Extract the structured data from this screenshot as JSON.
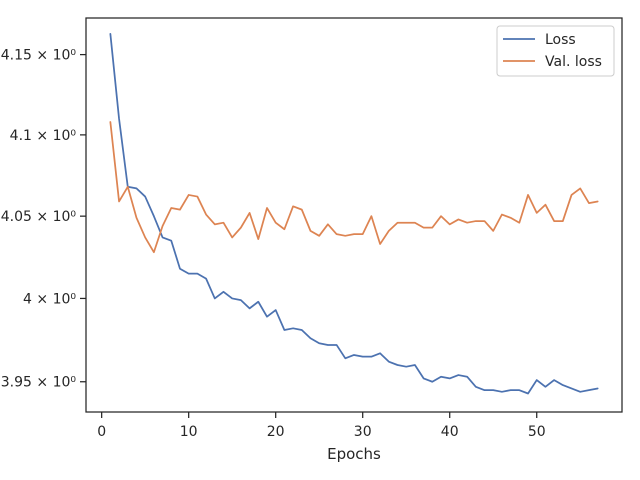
{
  "colors": {
    "loss": "#4c72b0",
    "val_loss": "#dd8452",
    "axes": "#262626",
    "background": "#ffffff"
  },
  "chart_data": {
    "type": "line",
    "title": "",
    "xlabel": "Epochs",
    "ylabel": "",
    "yscale": "log",
    "xlim": [
      -1.8,
      59.8
    ],
    "ylim": [
      3.932,
      4.173
    ],
    "xticks": [
      0,
      10,
      20,
      30,
      40,
      50
    ],
    "xtick_labels": [
      "0",
      "10",
      "20",
      "30",
      "40",
      "50"
    ],
    "yticks": [
      3.95,
      4.0,
      4.05,
      4.1,
      4.15
    ],
    "ytick_labels": [
      "3.95 × 10⁰",
      "4 × 10⁰",
      "4.05 × 10⁰",
      "4.1 × 10⁰",
      "4.15 × 10⁰"
    ],
    "grid": false,
    "legend_position": "top-right",
    "x": [
      1,
      2,
      3,
      4,
      5,
      6,
      7,
      8,
      9,
      10,
      11,
      12,
      13,
      14,
      15,
      16,
      17,
      18,
      19,
      20,
      21,
      22,
      23,
      24,
      25,
      26,
      27,
      28,
      29,
      30,
      31,
      32,
      33,
      34,
      35,
      36,
      37,
      38,
      39,
      40,
      41,
      42,
      43,
      44,
      45,
      46,
      47,
      48,
      49,
      50,
      51,
      52,
      53,
      54,
      55,
      56,
      57
    ],
    "series": [
      {
        "name": "Loss",
        "color": "#4c72b0",
        "values": [
          4.163,
          4.11,
          4.068,
          4.067,
          4.062,
          4.05,
          4.037,
          4.035,
          4.018,
          4.015,
          4.015,
          4.012,
          4.0,
          4.004,
          4.0,
          3.999,
          3.994,
          3.998,
          3.989,
          3.993,
          3.981,
          3.982,
          3.981,
          3.976,
          3.973,
          3.972,
          3.972,
          3.964,
          3.966,
          3.965,
          3.965,
          3.967,
          3.962,
          3.96,
          3.959,
          3.96,
          3.952,
          3.95,
          3.953,
          3.952,
          3.954,
          3.953,
          3.947,
          3.945,
          3.945,
          3.944,
          3.945,
          3.945,
          3.943,
          3.951,
          3.947,
          3.951,
          3.948,
          3.946,
          3.944,
          3.945,
          3.946
        ]
      },
      {
        "name": "Val. loss",
        "color": "#dd8452",
        "values": [
          4.108,
          4.059,
          4.068,
          4.049,
          4.037,
          4.028,
          4.044,
          4.055,
          4.054,
          4.063,
          4.062,
          4.051,
          4.045,
          4.046,
          4.037,
          4.043,
          4.052,
          4.036,
          4.055,
          4.046,
          4.042,
          4.056,
          4.054,
          4.041,
          4.038,
          4.045,
          4.039,
          4.038,
          4.039,
          4.039,
          4.05,
          4.033,
          4.041,
          4.046,
          4.046,
          4.046,
          4.043,
          4.043,
          4.05,
          4.045,
          4.048,
          4.046,
          4.047,
          4.047,
          4.041,
          4.051,
          4.049,
          4.046,
          4.063,
          4.052,
          4.057,
          4.047,
          4.047,
          4.063,
          4.067,
          4.058,
          4.059
        ]
      }
    ]
  }
}
